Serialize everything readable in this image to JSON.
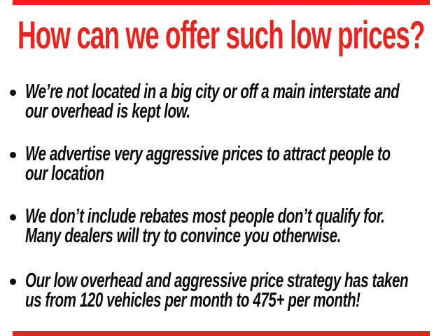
{
  "slide": {
    "background_color": "#ffffff",
    "accent_color": "#e52620",
    "text_color": "#0d0d0d",
    "headline": "How can we offer such low prices?",
    "bullets": [
      {
        "lines": [
          "We’re not located in a big city or off a main interstate and",
          "our overhead is kept low."
        ]
      },
      {
        "lines": [
          "We advertise very aggressive prices to attract people to",
          "our location"
        ]
      },
      {
        "lines": [
          "We don’t include rebates most people don’t qualify for.",
          "Many dealers will try to convince you otherwise."
        ]
      },
      {
        "lines": [
          "Our low overhead and aggressive price strategy has taken",
          "us from 120 vehicles per month to 475+ per month!"
        ]
      }
    ]
  }
}
